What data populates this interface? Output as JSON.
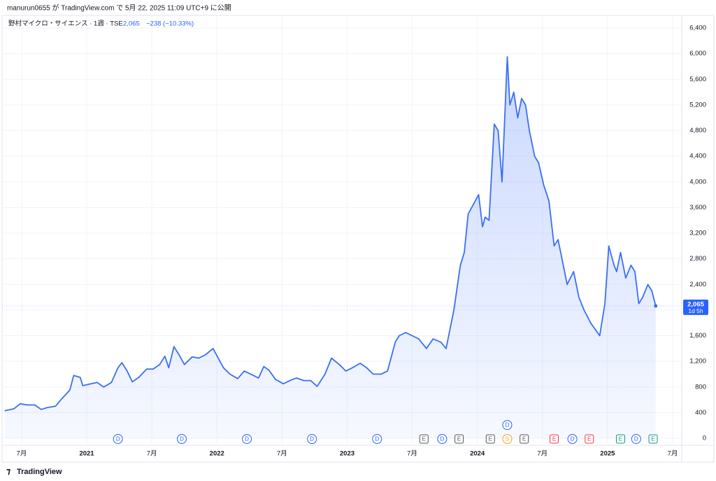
{
  "header": "manurun0655 が TradingView.com で 5月 22, 2025 11:09 UTC+9 に公開",
  "footer": "TradingView",
  "chart_data": {
    "type": "area",
    "title": "野村マイクロ・サイエンス · 1週 · TSE",
    "last": {
      "value": 2065,
      "label": "2,065",
      "countdown": "1d 5h"
    },
    "change_label": "−238 (−10.33%)",
    "color": "#3a6ff2",
    "grid": true,
    "x": [
      2020.37,
      2020.44,
      2020.49,
      2020.54,
      2020.6,
      2020.65,
      2020.7,
      2020.76,
      2020.81,
      2020.87,
      2020.9,
      2020.95,
      2020.97,
      2021.03,
      2021.08,
      2021.13,
      2021.19,
      2021.24,
      2021.27,
      2021.31,
      2021.35,
      2021.4,
      2021.46,
      2021.51,
      2021.56,
      2021.6,
      2021.63,
      2021.67,
      2021.71,
      2021.75,
      2021.81,
      2021.86,
      2021.91,
      2021.97,
      2022.01,
      2022.05,
      2022.1,
      2022.16,
      2022.21,
      2022.26,
      2022.32,
      2022.36,
      2022.4,
      2022.45,
      2022.51,
      2022.56,
      2022.61,
      2022.67,
      2022.72,
      2022.77,
      2022.83,
      2022.88,
      2022.94,
      2022.99,
      2023.04,
      2023.1,
      2023.15,
      2023.2,
      2023.26,
      2023.31,
      2023.37,
      2023.4,
      2023.45,
      2023.5,
      2023.55,
      2023.61,
      2023.66,
      2023.72,
      2023.76,
      2023.8,
      2023.82,
      2023.87,
      2023.9,
      2023.93,
      2023.97,
      2024.01,
      2024.04,
      2024.06,
      2024.09,
      2024.13,
      2024.16,
      2024.19,
      2024.23,
      2024.25,
      2024.28,
      2024.31,
      2024.34,
      2024.37,
      2024.4,
      2024.44,
      2024.47,
      2024.51,
      2024.55,
      2024.59,
      2024.62,
      2024.66,
      2024.69,
      2024.74,
      2024.78,
      2024.82,
      2024.87,
      2024.94,
      2024.98,
      2025.01,
      2025.05,
      2025.07,
      2025.1,
      2025.14,
      2025.18,
      2025.21,
      2025.24,
      2025.27,
      2025.31,
      2025.34,
      2025.37
    ],
    "values": [
      430,
      460,
      540,
      520,
      520,
      450,
      480,
      500,
      620,
      750,
      980,
      950,
      820,
      850,
      870,
      800,
      870,
      1100,
      1180,
      1050,
      880,
      950,
      1080,
      1080,
      1150,
      1280,
      1100,
      1430,
      1300,
      1150,
      1270,
      1250,
      1300,
      1400,
      1250,
      1100,
      1000,
      930,
      1050,
      1000,
      940,
      1120,
      1060,
      920,
      850,
      900,
      940,
      900,
      900,
      810,
      1000,
      1250,
      1150,
      1050,
      1100,
      1170,
      1100,
      1000,
      1000,
      1050,
      1500,
      1600,
      1650,
      1600,
      1550,
      1400,
      1550,
      1500,
      1400,
      1800,
      2000,
      2700,
      2900,
      3500,
      3650,
      3800,
      3300,
      3450,
      3400,
      4900,
      4800,
      4000,
      5950,
      5200,
      5400,
      5000,
      5300,
      5200,
      4800,
      4400,
      4300,
      3950,
      3700,
      3000,
      3100,
      2700,
      2400,
      2600,
      2200,
      2000,
      1800,
      1600,
      2100,
      3000,
      2700,
      2600,
      2900,
      2500,
      2700,
      2600,
      2100,
      2200,
      2400,
      2300,
      2065
    ],
    "xlim": [
      2020.35,
      2025.57
    ],
    "xticks": [
      {
        "value": 2020.5,
        "label": "7月"
      },
      2021,
      {
        "value": 2021.5,
        "label": "7月"
      },
      2022,
      {
        "value": 2022.5,
        "label": "7月"
      },
      2023,
      {
        "value": 2023.5,
        "label": "7月"
      },
      2024,
      {
        "value": 2024.5,
        "label": "7月"
      },
      2025,
      {
        "value": 2025.5,
        "label": "7月"
      }
    ],
    "ylim": [
      0,
      6400
    ],
    "yticks": [
      0,
      400,
      800,
      {
        "value": 1200,
        "label": "1,200"
      },
      {
        "value": 1600,
        "label": "1,600"
      },
      {
        "value": 2000,
        "label": "2,000"
      },
      {
        "value": 2400,
        "label": "2,400"
      },
      {
        "value": 2800,
        "label": "2,800"
      },
      {
        "value": 3200,
        "label": "3,200"
      },
      {
        "value": 3600,
        "label": "3,600"
      },
      {
        "value": 4000,
        "label": "4,000"
      },
      {
        "value": 4400,
        "label": "4,400"
      },
      {
        "value": 4800,
        "label": "4,800"
      },
      {
        "value": 5200,
        "label": "5,200"
      },
      {
        "value": 5600,
        "label": "5,600"
      },
      {
        "value": 6000,
        "label": "6,000"
      },
      {
        "value": 6400,
        "label": "6,400"
      }
    ],
    "events": [
      {
        "label": "D",
        "x": 2021.24,
        "color": "#2962ff"
      },
      {
        "label": "D",
        "x": 2021.73,
        "color": "#2962ff"
      },
      {
        "label": "D",
        "x": 2022.23,
        "color": "#2962ff"
      },
      {
        "label": "D",
        "x": 2022.73,
        "color": "#2962ff"
      },
      {
        "label": "D",
        "x": 2023.23,
        "color": "#2962ff"
      },
      {
        "label": "E",
        "x": 2023.59,
        "color": "#555555"
      },
      {
        "label": "D",
        "x": 2023.73,
        "color": "#2962ff"
      },
      {
        "label": "E",
        "x": 2023.86,
        "color": "#555555"
      },
      {
        "label": "E",
        "x": 2024.1,
        "color": "#555555"
      },
      {
        "label": "S",
        "x": 2024.23,
        "color": "#f5a623"
      },
      {
        "label": "D",
        "x": 2024.23,
        "color": "#2962ff",
        "row": 1
      },
      {
        "label": "E",
        "x": 2024.36,
        "color": "#555555"
      },
      {
        "label": "E",
        "x": 2024.59,
        "color": "#f23645"
      },
      {
        "label": "D",
        "x": 2024.73,
        "color": "#2962ff"
      },
      {
        "label": "E",
        "x": 2024.86,
        "color": "#f23645"
      },
      {
        "label": "E",
        "x": 2025.1,
        "color": "#089981"
      },
      {
        "label": "D",
        "x": 2025.22,
        "color": "#2962ff"
      },
      {
        "label": "E",
        "x": 2025.35,
        "color": "#089981"
      }
    ]
  }
}
